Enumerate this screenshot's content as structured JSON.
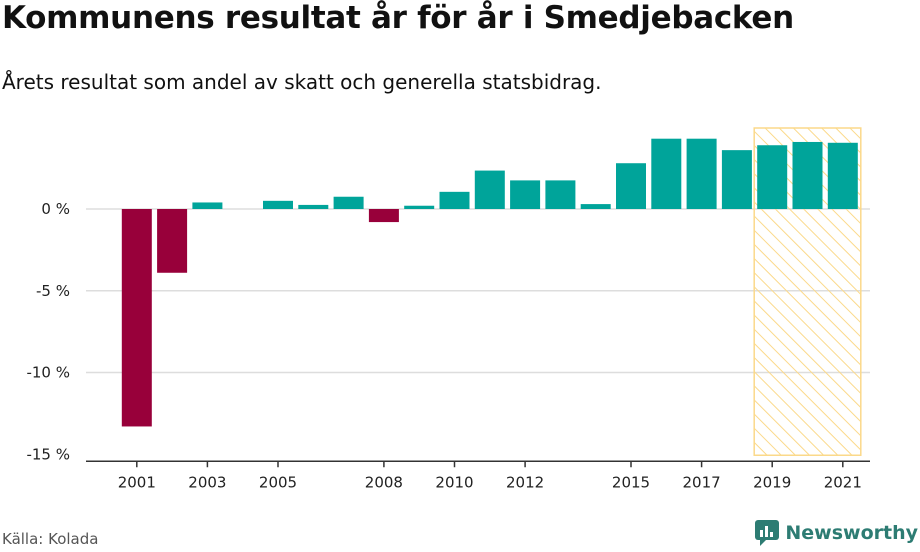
{
  "header": {
    "title": "Kommunens resultat år för år i Smedjebacken",
    "subtitle": "Årets resultat som andel av skatt och generella statsbidrag."
  },
  "footer": {
    "source": "Källa: Kolada",
    "brand": "Newsworthy"
  },
  "colors": {
    "positive": "#00a49a",
    "negative": "#98003a",
    "highlight_fill": "#fbd98a",
    "highlight_border": "#fbd98a",
    "grid": "#dddddd",
    "brand": "#2d7c73"
  },
  "chart_data": {
    "type": "bar",
    "title": "Kommunens resultat år för år i Smedjebacken",
    "ylabel": "",
    "xlabel": "",
    "ylim": [
      -15,
      4.9
    ],
    "y_ticks": [
      0,
      -5,
      -10,
      -15
    ],
    "y_tick_labels": [
      "0 %",
      "-5 %",
      "-10 %",
      "-15 %"
    ],
    "categories": [
      2000,
      2001,
      2002,
      2003,
      2004,
      2005,
      2006,
      2007,
      2008,
      2009,
      2010,
      2011,
      2012,
      2013,
      2014,
      2015,
      2016,
      2017,
      2018,
      2019,
      2020,
      2021
    ],
    "values": [
      null,
      -13.3,
      -3.9,
      0.4,
      null,
      0.5,
      0.25,
      0.75,
      -0.8,
      0.2,
      1.05,
      2.35,
      1.75,
      1.75,
      0.3,
      2.8,
      4.3,
      4.3,
      3.6,
      3.9,
      4.1,
      4.05
    ],
    "x_tick_labels": [
      {
        "year": 2001,
        "label": "2001"
      },
      {
        "year": 2003,
        "label": "2003"
      },
      {
        "year": 2005,
        "label": "2005"
      },
      {
        "year": 2008,
        "label": "2008"
      },
      {
        "year": 2010,
        "label": "2010"
      },
      {
        "year": 2012,
        "label": "2012"
      },
      {
        "year": 2015,
        "label": "2015"
      },
      {
        "year": 2017,
        "label": "2017"
      },
      {
        "year": 2019,
        "label": "2019"
      },
      {
        "year": 2021,
        "label": "2021"
      }
    ],
    "highlight_range": [
      2019,
      2021
    ]
  }
}
